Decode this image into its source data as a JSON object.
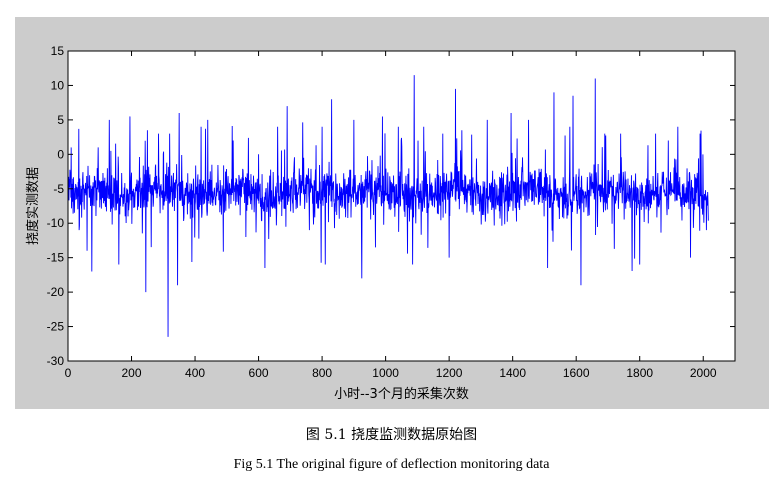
{
  "caption_cn": "图 5.1  挠度监测数据原始图",
  "caption_en": "Fig 5.1 The original figure of deflection monitoring data",
  "colors": {
    "panel": "#cccccc",
    "plot_bg": "#ffffff",
    "series": "#0000ff"
  },
  "chart_data": {
    "type": "line",
    "title": "",
    "xlabel": "小时--3个月的采集次数",
    "ylabel": "挠度实测数据",
    "xlim": [
      0,
      2100
    ],
    "ylim": [
      -30,
      15
    ],
    "x_ticks": [
      0,
      200,
      400,
      600,
      800,
      1000,
      1200,
      1400,
      1600,
      1800,
      2000
    ],
    "y_ticks": [
      15,
      10,
      5,
      0,
      -5,
      -10,
      -15,
      -20,
      -25,
      -30
    ],
    "x_tick_labels": [
      "0",
      "200",
      "400",
      "600",
      "800",
      "1000",
      "1200",
      "1400",
      "1600",
      "1800",
      "2000"
    ],
    "y_tick_labels": [
      "15",
      "10",
      "5",
      "0",
      "-5",
      "-10",
      "-15",
      "-20",
      "-25",
      "-30"
    ],
    "grid": false,
    "legend": "none",
    "series": [
      {
        "n_points": 2016,
        "x_start": 1,
        "x_end": 2016,
        "baseline": -5.5,
        "typical_range": [
          -11,
          0
        ],
        "notable_points": [
          [
            10,
            1
          ],
          [
            35,
            -11
          ],
          [
            60,
            -14
          ],
          [
            75,
            -17
          ],
          [
            95,
            1
          ],
          [
            130,
            5
          ],
          [
            160,
            -16
          ],
          [
            195,
            5.5
          ],
          [
            245,
            -20
          ],
          [
            250,
            3.5
          ],
          [
            285,
            3
          ],
          [
            315,
            -26.5
          ],
          [
            320,
            3
          ],
          [
            345,
            -19
          ],
          [
            350,
            6
          ],
          [
            440,
            5
          ],
          [
            520,
            2
          ],
          [
            560,
            -12
          ],
          [
            620,
            -16.5
          ],
          [
            660,
            4
          ],
          [
            690,
            7
          ],
          [
            760,
            -11
          ],
          [
            800,
            4
          ],
          [
            810,
            -16
          ],
          [
            830,
            8
          ],
          [
            900,
            5
          ],
          [
            925,
            -18
          ],
          [
            990,
            5.5
          ],
          [
            1040,
            4
          ],
          [
            1085,
            -16
          ],
          [
            1090,
            11.5
          ],
          [
            1120,
            4
          ],
          [
            1180,
            3
          ],
          [
            1200,
            -15
          ],
          [
            1220,
            9.5
          ],
          [
            1240,
            3.5
          ],
          [
            1320,
            5
          ],
          [
            1395,
            6
          ],
          [
            1450,
            5
          ],
          [
            1510,
            -16.5
          ],
          [
            1530,
            9
          ],
          [
            1580,
            4
          ],
          [
            1590,
            8.5
          ],
          [
            1615,
            -19
          ],
          [
            1660,
            11
          ],
          [
            1690,
            3
          ],
          [
            1740,
            3
          ],
          [
            1800,
            -16
          ],
          [
            1850,
            3
          ],
          [
            1890,
            2
          ],
          [
            1920,
            4
          ],
          [
            1960,
            -15
          ],
          [
            1990,
            3
          ],
          [
            2010,
            -11
          ]
        ]
      }
    ]
  }
}
